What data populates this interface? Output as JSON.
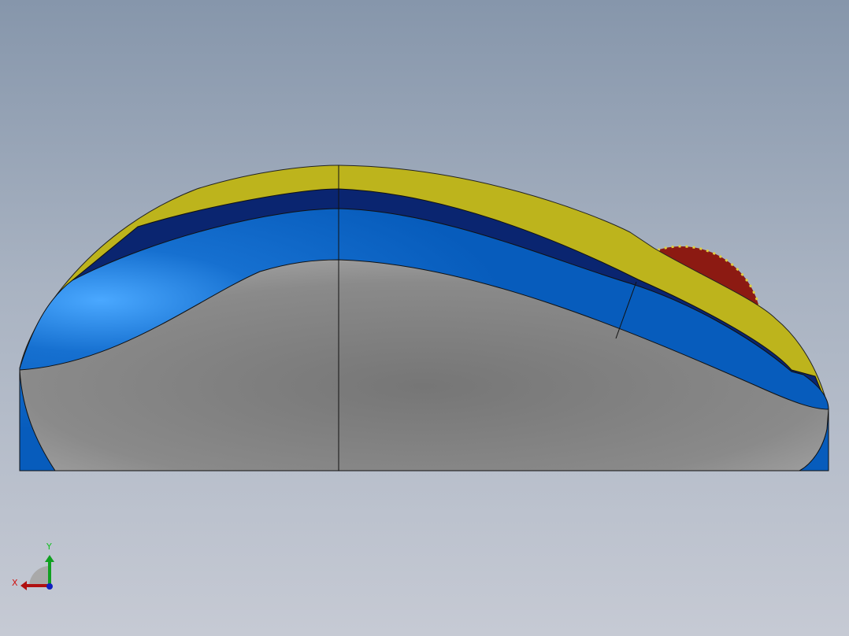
{
  "viewport": {
    "model": "mouse-side-view",
    "colors": {
      "top_shell": "#bdb41c",
      "stripe_dark": "#0a2570",
      "stripe_blue": "#0a62c0",
      "base": "#7c7c7c",
      "wheel": "#8c1a12"
    }
  },
  "triad": {
    "x_label": "X",
    "y_label": "Y",
    "colors": {
      "x": "#b01010",
      "y": "#10a020",
      "z": "#1020c0"
    }
  }
}
